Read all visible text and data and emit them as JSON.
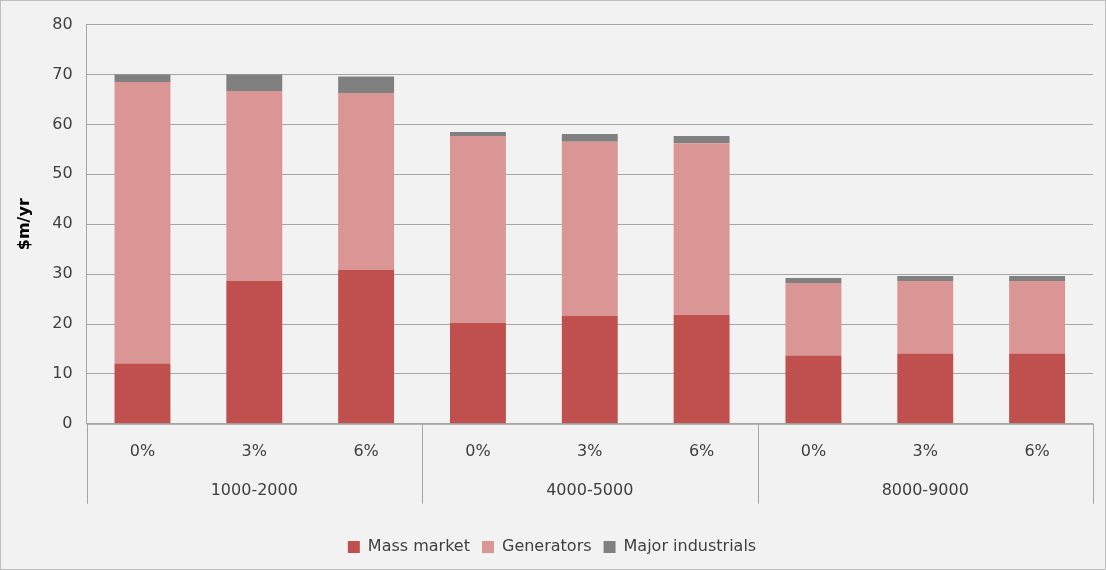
{
  "chart_data": {
    "type": "bar",
    "stacked": true,
    "ylabel": "$m/yr",
    "categories": [
      "0%",
      "3%",
      "6%",
      "0%",
      "3%",
      "6%",
      "0%",
      "3%",
      "6%"
    ],
    "annotations": [
      "1000-2000",
      "4000-5000",
      "8000-9000"
    ],
    "series": [
      {
        "name": "Mass market",
        "color": "#c0504d",
        "values": [
          12.1,
          28.6,
          30.8,
          20.2,
          21.6,
          21.8,
          13.7,
          14.1,
          14.1
        ]
      },
      {
        "name": "Generators",
        "color": "#d99694",
        "values": [
          56.4,
          38.1,
          35.5,
          37.5,
          34.9,
          34.4,
          14.5,
          14.5,
          14.5
        ]
      },
      {
        "name": "Major industrials",
        "color": "#808080",
        "values": [
          1.5,
          3.3,
          3.3,
          0.8,
          1.6,
          1.5,
          1.0,
          1.0,
          1.0
        ]
      }
    ],
    "ylim": [
      0,
      80
    ],
    "yticks": [
      0,
      10,
      20,
      30,
      40,
      50,
      60,
      70,
      80
    ],
    "grid": "y",
    "legend": "bottom"
  }
}
